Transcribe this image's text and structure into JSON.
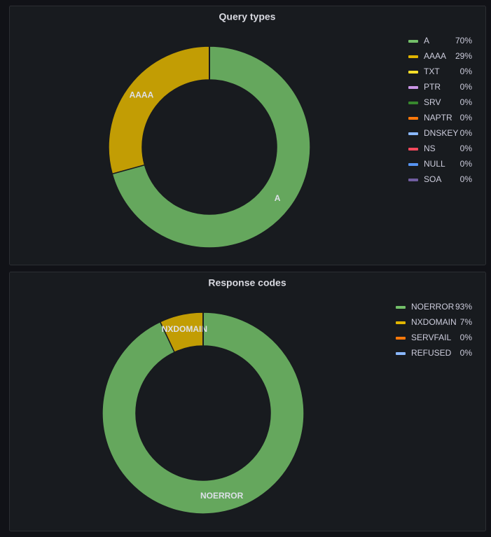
{
  "chart_data": [
    {
      "type": "pie",
      "title": "Query types",
      "categories": [
        "A",
        "AAAA",
        "TXT",
        "PTR",
        "SRV",
        "NAPTR",
        "DNSKEY",
        "NS",
        "NULL",
        "SOA"
      ],
      "values": [
        70,
        29,
        0,
        0,
        0,
        0,
        0,
        0,
        0,
        0
      ],
      "value_labels": [
        "70%",
        "29%",
        "0%",
        "0%",
        "0%",
        "0%",
        "0%",
        "0%",
        "0%",
        "0%"
      ],
      "colors": [
        "#73bf69",
        "#e0b400",
        "#fade2a",
        "#ca95e5",
        "#37872d",
        "#ff780a",
        "#8ab8ff",
        "#f2495c",
        "#5794f2",
        "#705da0"
      ],
      "legend": "right"
    },
    {
      "type": "pie",
      "title": "Response codes",
      "categories": [
        "NOERROR",
        "NXDOMAIN",
        "SERVFAIL",
        "REFUSED"
      ],
      "values": [
        93,
        7,
        0,
        0
      ],
      "value_labels": [
        "93%",
        "7%",
        "0%",
        "0%"
      ],
      "colors": [
        "#73bf69",
        "#e0b400",
        "#ff780a",
        "#8ab8ff"
      ],
      "legend": "right"
    }
  ]
}
